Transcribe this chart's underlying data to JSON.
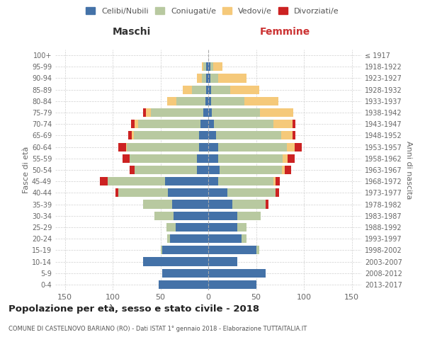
{
  "age_groups": [
    "100+",
    "95-99",
    "90-94",
    "85-89",
    "80-84",
    "75-79",
    "70-74",
    "65-69",
    "60-64",
    "55-59",
    "50-54",
    "45-49",
    "40-44",
    "35-39",
    "30-34",
    "25-29",
    "20-24",
    "15-19",
    "10-14",
    "5-9",
    "0-4"
  ],
  "birth_years": [
    "≤ 1917",
    "1918-1922",
    "1923-1927",
    "1928-1932",
    "1933-1937",
    "1938-1942",
    "1943-1947",
    "1948-1952",
    "1953-1957",
    "1958-1962",
    "1963-1967",
    "1968-1972",
    "1973-1977",
    "1978-1982",
    "1983-1987",
    "1988-1992",
    "1993-1997",
    "1998-2002",
    "2003-2007",
    "2008-2012",
    "2013-2017"
  ],
  "maschi": {
    "celibi": [
      0,
      2,
      2,
      2,
      3,
      5,
      8,
      10,
      10,
      12,
      12,
      45,
      42,
      38,
      36,
      34,
      40,
      48,
      68,
      48,
      52
    ],
    "coniugati": [
      0,
      3,
      5,
      15,
      30,
      55,
      65,
      68,
      75,
      70,
      65,
      60,
      52,
      30,
      20,
      10,
      3,
      2,
      0,
      0,
      0
    ],
    "vedovi": [
      0,
      2,
      5,
      10,
      10,
      5,
      4,
      2,
      1,
      0,
      0,
      0,
      0,
      0,
      0,
      0,
      0,
      0,
      0,
      0,
      0
    ],
    "divorziati": [
      0,
      0,
      0,
      0,
      0,
      3,
      4,
      4,
      8,
      8,
      5,
      8,
      3,
      0,
      0,
      0,
      0,
      0,
      0,
      0,
      0
    ]
  },
  "femmine": {
    "nubili": [
      0,
      2,
      2,
      3,
      3,
      4,
      6,
      8,
      10,
      10,
      12,
      10,
      20,
      25,
      30,
      30,
      35,
      50,
      30,
      60,
      50
    ],
    "coniugate": [
      0,
      3,
      8,
      20,
      35,
      50,
      62,
      68,
      72,
      68,
      65,
      58,
      50,
      35,
      25,
      10,
      5,
      3,
      0,
      0,
      0
    ],
    "vedove": [
      0,
      10,
      30,
      30,
      35,
      35,
      20,
      12,
      8,
      5,
      3,
      2,
      0,
      0,
      0,
      0,
      0,
      0,
      0,
      0,
      0
    ],
    "divorziate": [
      0,
      0,
      0,
      0,
      0,
      0,
      3,
      3,
      8,
      7,
      7,
      5,
      4,
      3,
      0,
      0,
      0,
      0,
      0,
      0,
      0
    ]
  },
  "colors": {
    "celibi": "#4472a8",
    "coniugati": "#b8c9a0",
    "vedovi": "#f5c97a",
    "divorziati": "#cc2222"
  },
  "title": "Popolazione per età, sesso e stato civile - 2018",
  "subtitle": "COMUNE DI CASTELNOVO BARIANO (RO) - Dati ISTAT 1° gennaio 2018 - Elaborazione TUTTAITALIA.IT",
  "xlabel_left": "Maschi",
  "xlabel_right": "Femmine",
  "ylabel_left": "Fasce di età",
  "ylabel_right": "Anni di nascita",
  "xlim": 160,
  "legend_labels": [
    "Celibi/Nubili",
    "Coniugati/e",
    "Vedovi/e",
    "Divorziati/e"
  ],
  "bg_color": "#ffffff",
  "grid_color": "#cccccc"
}
